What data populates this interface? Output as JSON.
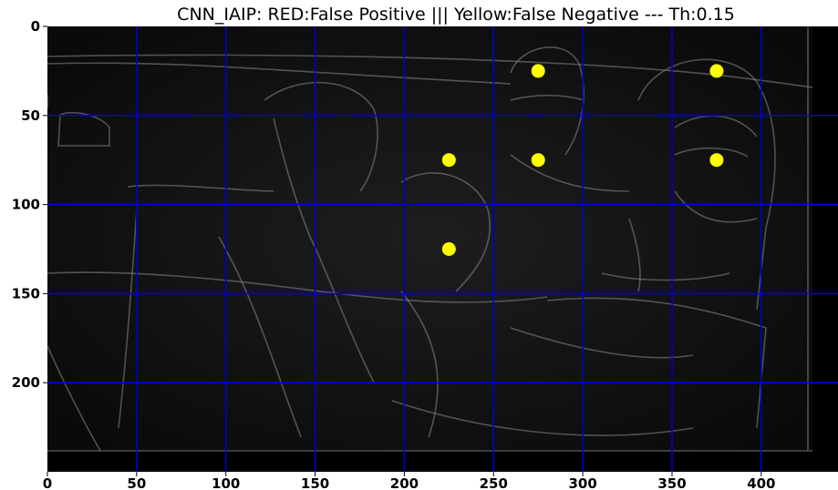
{
  "chart_data": {
    "type": "scatter",
    "title": "CNN_IAIP: RED:False Positive ||| Yellow:False Negative --- Th:0.15",
    "xlabel": "",
    "ylabel": "",
    "xlim": [
      0,
      443
    ],
    "ylim": [
      250,
      0
    ],
    "x_ticks": [
      "0",
      "50",
      "100",
      "150",
      "200",
      "250",
      "300",
      "350",
      "400"
    ],
    "y_ticks": [
      "0",
      "50",
      "100",
      "150",
      "200"
    ],
    "grid": true,
    "grid_color": "#0000cc",
    "background_image": "grayscale edge-detection image of people seated at a table",
    "series": [
      {
        "name": "False Negative",
        "color": "#ffff00",
        "points": [
          {
            "x": 275,
            "y": 25
          },
          {
            "x": 375,
            "y": 25
          },
          {
            "x": 225,
            "y": 75
          },
          {
            "x": 275,
            "y": 75
          },
          {
            "x": 375,
            "y": 75
          },
          {
            "x": 225,
            "y": 125
          }
        ]
      }
    ]
  }
}
